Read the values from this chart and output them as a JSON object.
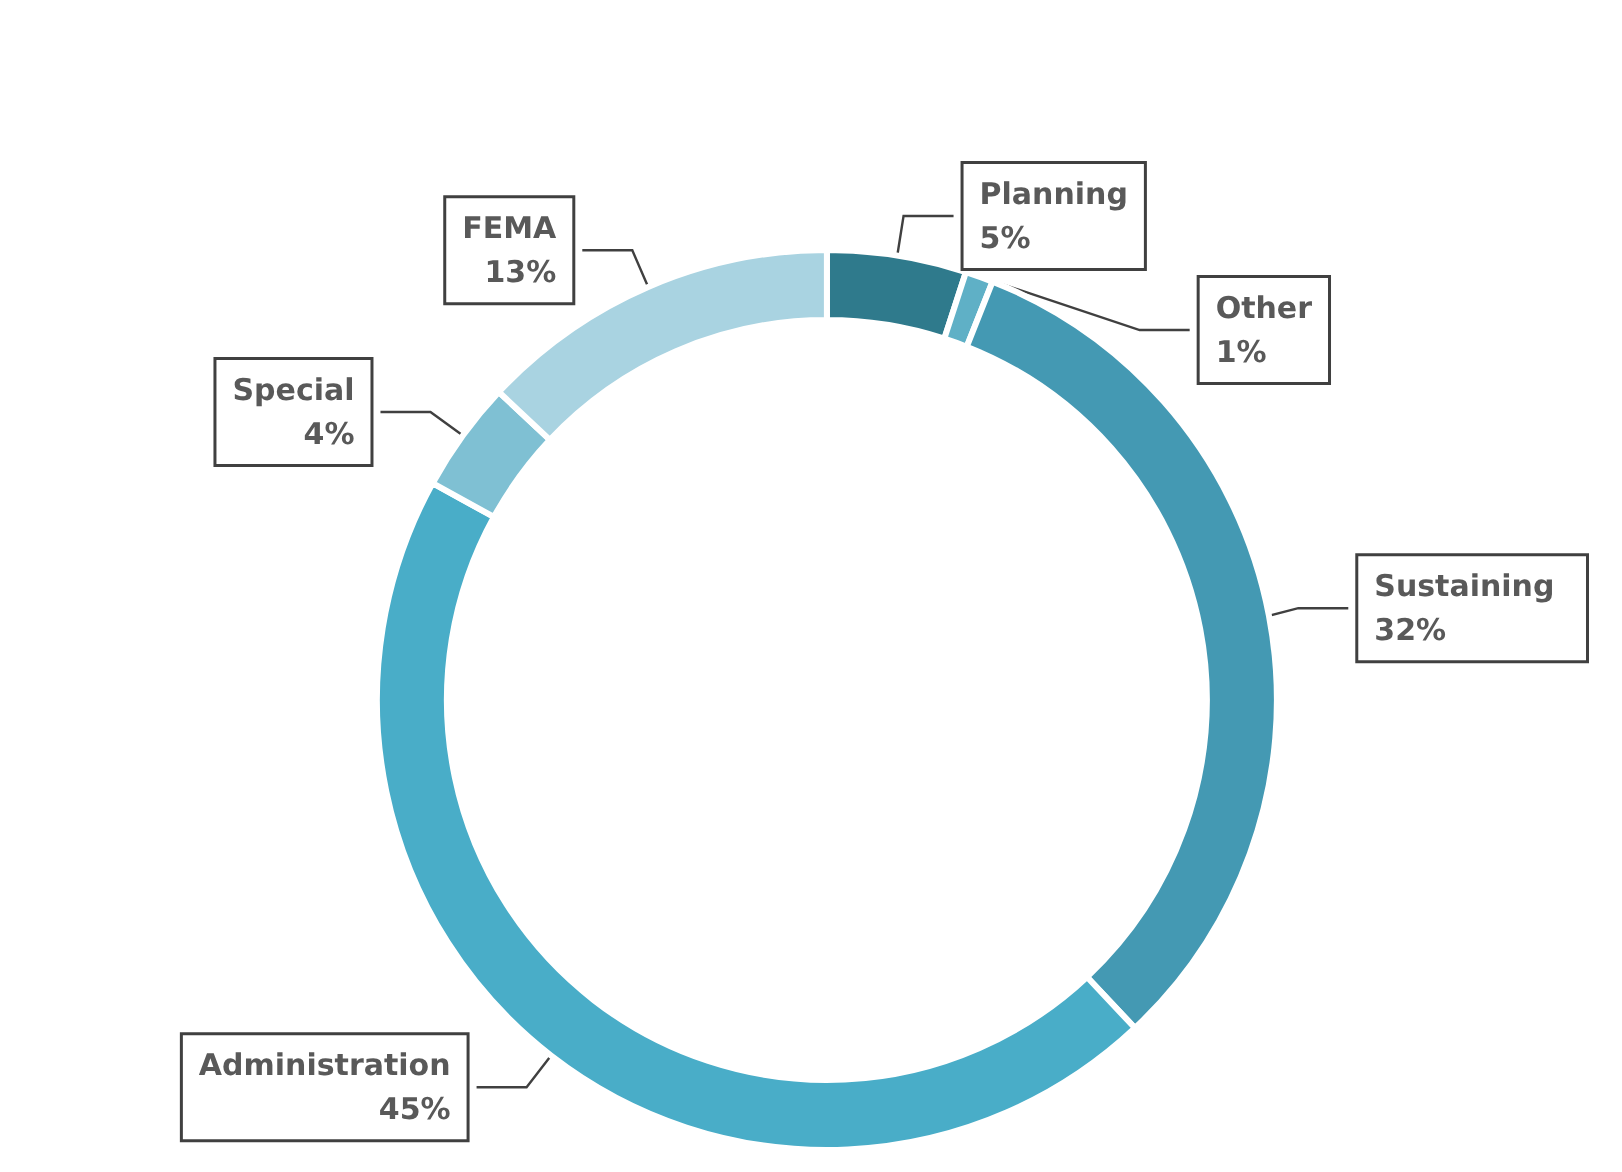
{
  "chart_data": {
    "type": "donut",
    "categories": [
      "Planning",
      "Other",
      "Sustaining",
      "Administration",
      "Special",
      "FEMA"
    ],
    "values": [
      5,
      1,
      32,
      45,
      4,
      13
    ],
    "value_labels": [
      "5%",
      "1%",
      "32%",
      "45%",
      "4%",
      "13%"
    ],
    "colors": [
      "#2f7a8c",
      "#5fb0c6",
      "#4499b3",
      "#49adc8",
      "#7fc0d3",
      "#a9d3e1"
    ],
    "legend": false
  }
}
